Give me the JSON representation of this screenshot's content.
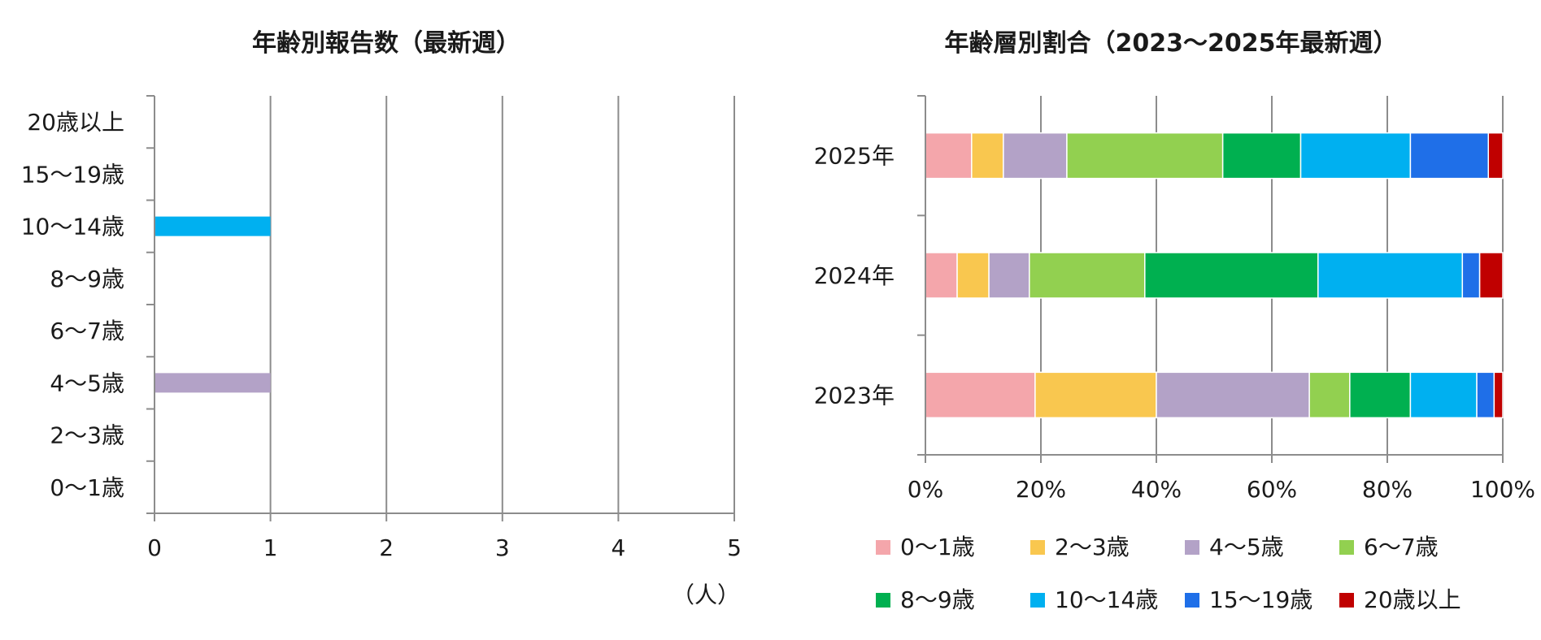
{
  "chart_data": [
    {
      "type": "bar",
      "orientation": "horizontal",
      "title": "年齢別報告数（最新週）",
      "unit_label": "（人）",
      "categories": [
        "20歳以上",
        "15〜19歳",
        "10〜14歳",
        "8〜9歳",
        "6〜7歳",
        "4〜5歳",
        "2〜3歳",
        "0〜1歳"
      ],
      "values": [
        0,
        0,
        1,
        0,
        0,
        1,
        0,
        0
      ],
      "bar_colors": [
        "#c00000",
        "#1f6fe8",
        "#00b0f0",
        "#00b050",
        "#92d050",
        "#b3a2c7",
        "#f9c74f",
        "#f4a6ab"
      ],
      "xlim": [
        0,
        5
      ],
      "xticks": [
        "0",
        "1",
        "2",
        "3",
        "4",
        "5"
      ],
      "grid": true
    },
    {
      "type": "bar",
      "orientation": "horizontal",
      "stacked": "percent",
      "title": "年齢層別割合（2023〜2025年最新週）",
      "categories": [
        "2025年",
        "2024年",
        "2023年"
      ],
      "xlim": [
        0,
        100
      ],
      "xticks": [
        "0%",
        "20%",
        "40%",
        "60%",
        "80%",
        "100%"
      ],
      "grid": true,
      "legend": "bottom",
      "series": [
        {
          "name": "0〜1歳",
          "color": "#f4a6ab",
          "values": [
            8,
            5.5,
            19
          ]
        },
        {
          "name": "2〜3歳",
          "color": "#f9c74f",
          "values": [
            5.5,
            5.5,
            21
          ]
        },
        {
          "name": "4〜5歳",
          "color": "#b3a2c7",
          "values": [
            11,
            7,
            26.5
          ]
        },
        {
          "name": "6〜7歳",
          "color": "#92d050",
          "values": [
            27,
            20,
            7
          ]
        },
        {
          "name": "8〜9歳",
          "color": "#00b050",
          "values": [
            13.5,
            30,
            10.5
          ]
        },
        {
          "name": "10〜14歳",
          "color": "#00b0f0",
          "values": [
            19,
            25,
            11.5
          ]
        },
        {
          "name": "15〜19歳",
          "color": "#1f6fe8",
          "values": [
            13.5,
            3,
            3
          ]
        },
        {
          "name": "20歳以上",
          "color": "#c00000",
          "values": [
            2.5,
            4,
            1.5
          ]
        }
      ]
    }
  ]
}
